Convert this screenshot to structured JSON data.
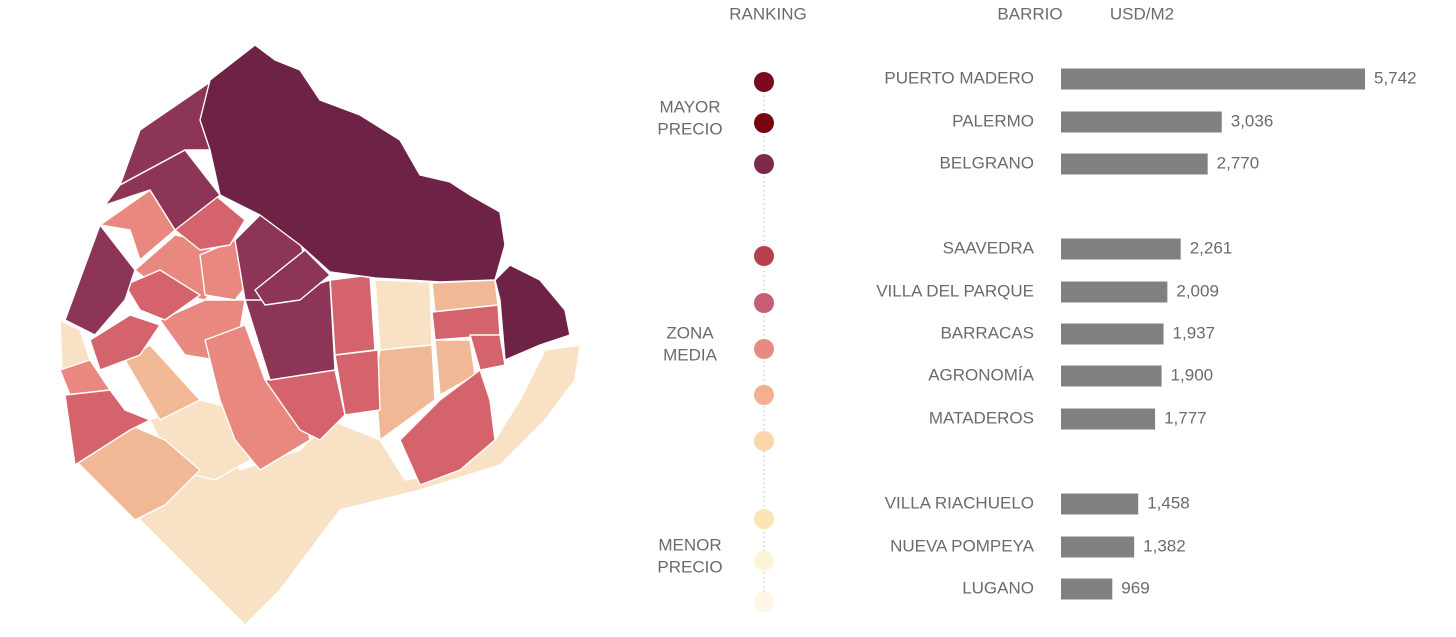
{
  "chart_data": {
    "type": "bar",
    "orientation": "horizontal",
    "headers": {
      "ranking": "RANKING",
      "category": "BARRIO",
      "value": "USD/M2"
    },
    "color": "#808080",
    "groups": [
      {
        "label": [
          "MAYOR",
          "PRECIO"
        ],
        "dot_colors": [
          "#7a0a1e",
          "#780610",
          "#7b2a4c"
        ],
        "categories": [
          "PUERTO MADERO",
          "PALERMO",
          "BELGRANO"
        ],
        "values": [
          5742,
          3036,
          2770
        ],
        "value_labels": [
          "5,742",
          "3,036",
          "2,770"
        ]
      },
      {
        "label": [
          "ZONA",
          "MEDIA"
        ],
        "dot_colors": [
          "#b8414f",
          "#c85e74",
          "#e98a80",
          "#f4b08e",
          "#fad6a8"
        ],
        "categories": [
          "SAAVEDRA",
          "VILLA DEL PARQUE",
          "BARRACAS",
          "AGRONOMÍA",
          "MATADEROS"
        ],
        "values": [
          2261,
          2009,
          1937,
          1900,
          1777
        ],
        "value_labels": [
          "2,261",
          "2,009",
          "1,937",
          "1,900",
          "1,777"
        ]
      },
      {
        "label": [
          "MENOR",
          "PRECIO"
        ],
        "dot_colors": [
          "#fbe6b3",
          "#fdf4d8",
          "#fdf7e4"
        ],
        "categories": [
          "VILLA RIACHUELO",
          "NUEVA POMPEYA",
          "LUGANO"
        ],
        "values": [
          1458,
          1382,
          969
        ],
        "value_labels": [
          "1,458",
          "1,382",
          "969"
        ]
      }
    ]
  }
}
